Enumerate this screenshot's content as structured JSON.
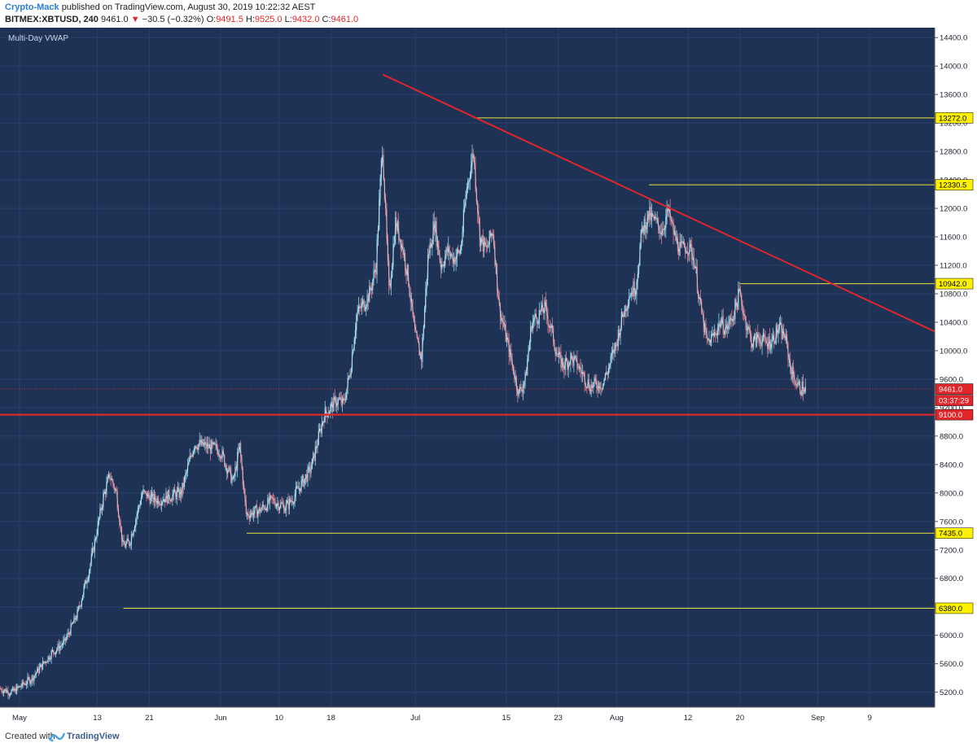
{
  "header": {
    "author": "Crypto-Mack",
    "published": "published on TradingView.com, August 30, 2019 10:22:32 AEST",
    "symbol": "BITMEX:XBTUSD, 240",
    "last": "9461.0",
    "change": "−30.5 (−0.32%)",
    "o_label": "O:",
    "o_value": "9491.5",
    "h_label": "H:",
    "h_value": "9525.0",
    "l_label": "L:",
    "l_value": "9432.0",
    "c_label": "C:",
    "c_value": "9461.0"
  },
  "indicator": "Multi-Day VWAP",
  "footer": {
    "created": "Created with",
    "brand": "TradingView"
  },
  "colors": {
    "background": "#1e3256",
    "up": "#8fd3e4",
    "down": "#dd7f8d",
    "support": "#e0262b",
    "level": "#e8e63c",
    "badge_yellow": "#fff200",
    "badge_red": "#e0262b",
    "axis_bg": "#ffffff"
  },
  "chart_data": {
    "type": "candlestick",
    "y_ticks": [
      5200,
      5600,
      6000,
      6400,
      6800,
      7200,
      7600,
      8000,
      8400,
      8800,
      9200,
      9600,
      10000,
      10400,
      10800,
      11200,
      11600,
      12000,
      12400,
      12800,
      13200,
      13600,
      14000,
      14400
    ],
    "y_tick_labels": [
      "5200.0",
      "5600.0",
      "6000.0",
      "6400.0",
      "6800.0",
      "7200.0",
      "7600.0",
      "8000.0",
      "8400.0",
      "8800.0",
      "9200.0",
      "9600.0",
      "10000.0",
      "10400.0",
      "10800.0",
      "11200.0",
      "11600.0",
      "12000.0",
      "12400.0",
      "12800.0",
      "13200.0",
      "13600.0",
      "14000.0",
      "14400.0"
    ],
    "ylim": [
      4990,
      14540
    ],
    "x_range": [
      "2019-04-28",
      "2019-09-19"
    ],
    "x_ticks": [
      {
        "date": "2019-05-01",
        "label": "May"
      },
      {
        "date": "2019-05-13",
        "label": "13"
      },
      {
        "date": "2019-05-21",
        "label": "21"
      },
      {
        "date": "2019-06-01",
        "label": "Jun"
      },
      {
        "date": "2019-06-10",
        "label": "10"
      },
      {
        "date": "2019-06-18",
        "label": "18"
      },
      {
        "date": "2019-07-01",
        "label": "Jul"
      },
      {
        "date": "2019-07-15",
        "label": "15"
      },
      {
        "date": "2019-07-23",
        "label": "23"
      },
      {
        "date": "2019-08-01",
        "label": "Aug"
      },
      {
        "date": "2019-08-12",
        "label": "12"
      },
      {
        "date": "2019-08-20",
        "label": "20"
      },
      {
        "date": "2019-09-01",
        "label": "Sep"
      },
      {
        "date": "2019-09-09",
        "label": "9"
      }
    ],
    "price_path": [
      [
        "2019-04-28",
        5250
      ],
      [
        "2019-04-30",
        5200
      ],
      [
        "2019-05-03",
        5400
      ],
      [
        "2019-05-06",
        5750
      ],
      [
        "2019-05-08",
        5900
      ],
      [
        "2019-05-10",
        6300
      ],
      [
        "2019-05-12",
        7000
      ],
      [
        "2019-05-14",
        7950
      ],
      [
        "2019-05-15",
        8250
      ],
      [
        "2019-05-16",
        8000
      ],
      [
        "2019-05-17",
        7250
      ],
      [
        "2019-05-18",
        7300
      ],
      [
        "2019-05-20",
        8000
      ],
      [
        "2019-05-22",
        7900
      ],
      [
        "2019-05-24",
        7950
      ],
      [
        "2019-05-26",
        8000
      ],
      [
        "2019-05-28",
        8700
      ],
      [
        "2019-05-30",
        8650
      ],
      [
        "2019-06-01",
        8600
      ],
      [
        "2019-06-03",
        8150
      ],
      [
        "2019-06-04",
        8650
      ],
      [
        "2019-06-05",
        7700
      ],
      [
        "2019-06-07",
        7750
      ],
      [
        "2019-06-09",
        7900
      ],
      [
        "2019-06-11",
        7800
      ],
      [
        "2019-06-12",
        7900
      ],
      [
        "2019-06-15",
        8350
      ],
      [
        "2019-06-17",
        9100
      ],
      [
        "2019-06-18",
        9200
      ],
      [
        "2019-06-19",
        9300
      ],
      [
        "2019-06-20",
        9250
      ],
      [
        "2019-06-21",
        9700
      ],
      [
        "2019-06-22",
        10500
      ],
      [
        "2019-06-24",
        10800
      ],
      [
        "2019-06-25",
        11200
      ],
      [
        "2019-06-26",
        12900
      ],
      [
        "2019-06-27",
        10800
      ],
      [
        "2019-06-28",
        11800
      ],
      [
        "2019-06-29",
        11500
      ],
      [
        "2019-06-30",
        11000
      ],
      [
        "2019-07-01",
        10200
      ],
      [
        "2019-07-02",
        9900
      ],
      [
        "2019-07-03",
        11300
      ],
      [
        "2019-07-04",
        11800
      ],
      [
        "2019-07-05",
        11200
      ],
      [
        "2019-07-06",
        11400
      ],
      [
        "2019-07-07",
        11300
      ],
      [
        "2019-07-08",
        11400
      ],
      [
        "2019-07-09",
        12300
      ],
      [
        "2019-07-10",
        12800
      ],
      [
        "2019-07-11",
        11600
      ],
      [
        "2019-07-12",
        11400
      ],
      [
        "2019-07-13",
        11700
      ],
      [
        "2019-07-14",
        10600
      ],
      [
        "2019-07-16",
        9800
      ],
      [
        "2019-07-17",
        9400
      ],
      [
        "2019-07-18",
        9600
      ],
      [
        "2019-07-19",
        10400
      ],
      [
        "2019-07-20",
        10500
      ],
      [
        "2019-07-21",
        10600
      ],
      [
        "2019-07-22",
        10300
      ],
      [
        "2019-07-23",
        9900
      ],
      [
        "2019-07-24",
        9800
      ],
      [
        "2019-07-25",
        9900
      ],
      [
        "2019-07-26",
        9800
      ],
      [
        "2019-07-28",
        9500
      ],
      [
        "2019-07-30",
        9550
      ],
      [
        "2019-07-31",
        9800
      ],
      [
        "2019-08-01",
        10100
      ],
      [
        "2019-08-02",
        10500
      ],
      [
        "2019-08-03",
        10800
      ],
      [
        "2019-08-04",
        10900
      ],
      [
        "2019-08-05",
        11700
      ],
      [
        "2019-08-06",
        11900
      ],
      [
        "2019-08-07",
        11800
      ],
      [
        "2019-08-08",
        11700
      ],
      [
        "2019-08-09",
        11950
      ],
      [
        "2019-08-10",
        11600
      ],
      [
        "2019-08-11",
        11400
      ],
      [
        "2019-08-12",
        11500
      ],
      [
        "2019-08-13",
        11300
      ],
      [
        "2019-08-14",
        10600
      ],
      [
        "2019-08-15",
        10100
      ],
      [
        "2019-08-16",
        10200
      ],
      [
        "2019-08-17",
        10400
      ],
      [
        "2019-08-18",
        10300
      ],
      [
        "2019-08-19",
        10500
      ],
      [
        "2019-08-20",
        10800
      ],
      [
        "2019-08-21",
        10400
      ],
      [
        "2019-08-22",
        10100
      ],
      [
        "2019-08-23",
        10200
      ],
      [
        "2019-08-24",
        10100
      ],
      [
        "2019-08-25",
        10150
      ],
      [
        "2019-08-26",
        10300
      ],
      [
        "2019-08-27",
        10200
      ],
      [
        "2019-08-28",
        9700
      ],
      [
        "2019-08-29",
        9500
      ],
      [
        "2019-08-30",
        9461
      ]
    ],
    "trendline": {
      "start": [
        "2019-06-26",
        13880
      ],
      "end": [
        "2019-09-19",
        10270
      ]
    },
    "support_line": {
      "price": 9100,
      "label": "9100.0"
    },
    "horizontal_levels": [
      {
        "price": 13272,
        "label": "13272.0",
        "from": "2019-07-10"
      },
      {
        "price": 12330.5,
        "label": "12330.5",
        "from": "2019-08-06"
      },
      {
        "price": 10942,
        "label": "10942.0",
        "from": "2019-08-20"
      },
      {
        "price": 7435,
        "label": "7435.0",
        "from": "2019-06-05"
      },
      {
        "price": 6380,
        "label": "6380.0",
        "from": "2019-05-17"
      }
    ],
    "last_price": {
      "price": 9461,
      "label": "9461.0",
      "countdown": "03:37:29"
    },
    "grid": true,
    "legend": "top-left"
  }
}
